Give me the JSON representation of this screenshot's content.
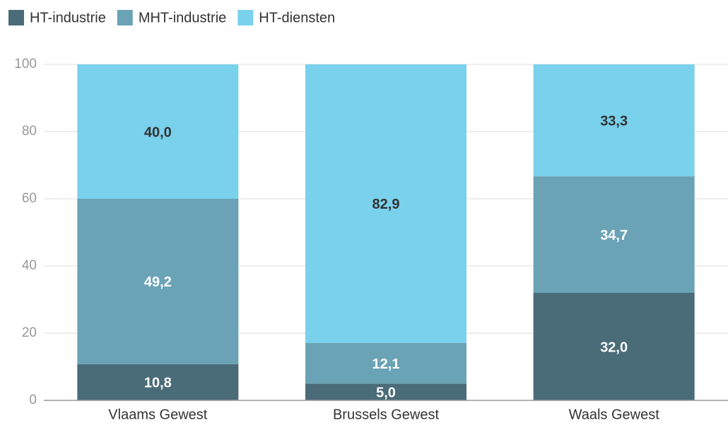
{
  "chart_data": {
    "type": "stacked_bar",
    "categories": [
      "Vlaams Gewest",
      "Brussels Gewest",
      "Waals Gewest"
    ],
    "series": [
      {
        "name": "HT-industrie",
        "color": "#4a6b78",
        "values": [
          10.8,
          5.0,
          32.0
        ],
        "value_labels": [
          "10,8",
          "5,0",
          "32,0"
        ]
      },
      {
        "name": "MHT-industrie",
        "color": "#6aa3b6",
        "values": [
          49.2,
          12.1,
          34.7
        ],
        "value_labels": [
          "49,2",
          "12,1",
          "34,7"
        ]
      },
      {
        "name": "HT-diensten",
        "color": "#79d1ec",
        "values": [
          40.0,
          82.9,
          33.3
        ],
        "value_labels": [
          "40,0",
          "82,9",
          "33,3"
        ]
      }
    ],
    "ylim": [
      0,
      100
    ],
    "yticks": [
      0,
      20,
      40,
      60,
      80,
      100
    ],
    "grid": true,
    "legend": "top-left"
  }
}
